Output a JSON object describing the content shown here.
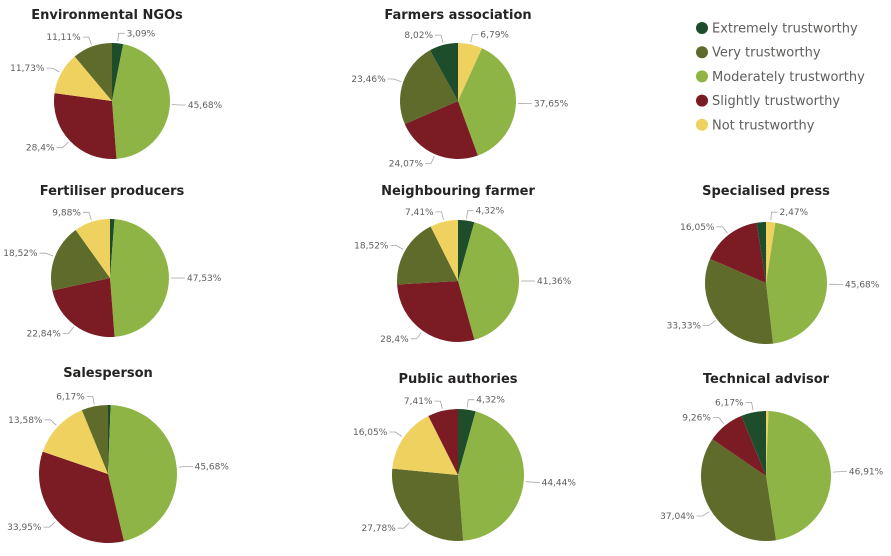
{
  "legend": {
    "placement": "top-right",
    "entries": [
      {
        "name": "Extremely trustworthy",
        "color": "#1e4d2b"
      },
      {
        "name": "Very trustworthy",
        "color": "#5e6b2a"
      },
      {
        "name": "Moderately trustworthy",
        "color": "#8db445"
      },
      {
        "name": "Slightly trustworthy",
        "color": "#7b1c24"
      },
      {
        "name": "Not trustworthy",
        "color": "#efd160"
      }
    ]
  },
  "chart_data": [
    {
      "type": "pie",
      "title": "Environmental NGOs",
      "slices": [
        {
          "category": "Extremely trustworthy",
          "value": 3.09,
          "label": "3,09%"
        },
        {
          "category": "Moderately trustworthy",
          "value": 45.68,
          "label": "45,68%"
        },
        {
          "category": "Slightly trustworthy",
          "value": 28.4,
          "label": "28,4%"
        },
        {
          "category": "Not trustworthy",
          "value": 11.73,
          "label": "11,73%"
        },
        {
          "category": "Very trustworthy",
          "value": 11.11,
          "label": "11,11%"
        }
      ]
    },
    {
      "type": "pie",
      "title": "Farmers association",
      "slices": [
        {
          "category": "Not trustworthy",
          "value": 6.79,
          "label": "6,79%"
        },
        {
          "category": "Moderately trustworthy",
          "value": 37.65,
          "label": "37,65%"
        },
        {
          "category": "Slightly trustworthy",
          "value": 24.07,
          "label": "24,07%"
        },
        {
          "category": "Very trustworthy",
          "value": 23.46,
          "label": "23,46%"
        },
        {
          "category": "Extremely trustworthy",
          "value": 8.02,
          "label": "8,02%"
        }
      ]
    },
    {
      "type": "pie",
      "title": "Fertiliser producers",
      "slices": [
        {
          "category": "Extremely trustworthy",
          "value": 1.23,
          "label": ""
        },
        {
          "category": "Moderately trustworthy",
          "value": 47.53,
          "label": "47,53%"
        },
        {
          "category": "Slightly trustworthy",
          "value": 22.84,
          "label": "22,84%"
        },
        {
          "category": "Very trustworthy",
          "value": 18.52,
          "label": "18,52%"
        },
        {
          "category": "Not trustworthy",
          "value": 9.88,
          "label": "9,88%"
        }
      ]
    },
    {
      "type": "pie",
      "title": "Neighbouring farmer",
      "slices": [
        {
          "category": "Extremely trustworthy",
          "value": 4.32,
          "label": "4,32%"
        },
        {
          "category": "Moderately trustworthy",
          "value": 41.36,
          "label": "41,36%"
        },
        {
          "category": "Slightly trustworthy",
          "value": 28.4,
          "label": "28,4%"
        },
        {
          "category": "Very trustworthy",
          "value": 18.52,
          "label": "18,52%"
        },
        {
          "category": "Not trustworthy",
          "value": 7.41,
          "label": "7,41%"
        }
      ]
    },
    {
      "type": "pie",
      "title": "Specialised press",
      "slices": [
        {
          "category": "Not trustworthy",
          "value": 2.47,
          "label": "2,47%"
        },
        {
          "category": "Moderately trustworthy",
          "value": 45.68,
          "label": "45,68%"
        },
        {
          "category": "Very trustworthy",
          "value": 33.33,
          "label": "33,33%"
        },
        {
          "category": "Slightly trustworthy",
          "value": 16.05,
          "label": "16,05%"
        },
        {
          "category": "Extremely trustworthy",
          "value": 2.47,
          "label": ""
        }
      ]
    },
    {
      "type": "pie",
      "title": "Salesperson",
      "slices": [
        {
          "category": "Extremely trustworthy",
          "value": 0.62,
          "label": ""
        },
        {
          "category": "Moderately trustworthy",
          "value": 45.68,
          "label": "45,68%"
        },
        {
          "category": "Slightly trustworthy",
          "value": 33.95,
          "label": "33,95%"
        },
        {
          "category": "Not trustworthy",
          "value": 13.58,
          "label": "13,58%"
        },
        {
          "category": "Very trustworthy",
          "value": 6.17,
          "label": "6,17%"
        }
      ]
    },
    {
      "type": "pie",
      "title": "Public authories",
      "slices": [
        {
          "category": "Extremely trustworthy",
          "value": 4.32,
          "label": "4,32%"
        },
        {
          "category": "Moderately trustworthy",
          "value": 44.44,
          "label": "44,44%"
        },
        {
          "category": "Very trustworthy",
          "value": 27.78,
          "label": "27,78%"
        },
        {
          "category": "Not trustworthy",
          "value": 16.05,
          "label": "16,05%"
        },
        {
          "category": "Slightly trustworthy",
          "value": 7.41,
          "label": "7,41%"
        }
      ]
    },
    {
      "type": "pie",
      "title": "Technical advisor",
      "slices": [
        {
          "category": "Not trustworthy",
          "value": 0.62,
          "label": ""
        },
        {
          "category": "Moderately trustworthy",
          "value": 46.91,
          "label": "46,91%"
        },
        {
          "category": "Very trustworthy",
          "value": 37.04,
          "label": "37,04%"
        },
        {
          "category": "Slightly trustworthy",
          "value": 9.26,
          "label": "9,26%"
        },
        {
          "category": "Extremely trustworthy",
          "value": 6.17,
          "label": "6,17%"
        }
      ]
    }
  ]
}
